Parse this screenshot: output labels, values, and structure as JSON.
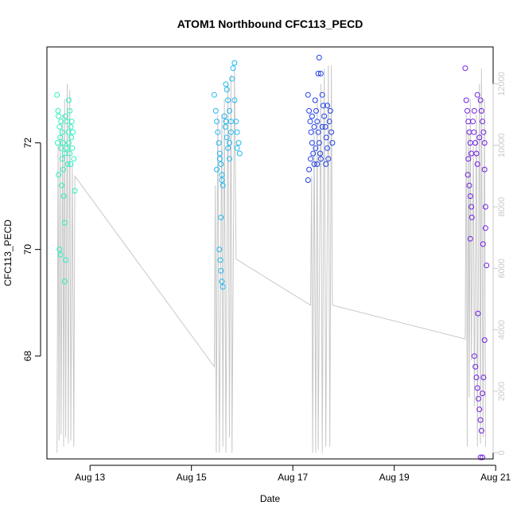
{
  "chart_data": {
    "type": "scatter",
    "title": "ATOM1 Northbound CFC113_PECD",
    "xlabel": "Date",
    "ylabel": "CFC113_PECD",
    "x_domain_days": [
      12.0,
      21.0
    ],
    "xlim_days": [
      12.15,
      20.95
    ],
    "ylim": [
      66.07,
      73.8
    ],
    "y2lim": [
      -200,
      13200
    ],
    "x_ticks": [
      {
        "label": "Aug 13",
        "day": 13
      },
      {
        "label": "Aug 15",
        "day": 15
      },
      {
        "label": "Aug 17",
        "day": 17
      },
      {
        "label": "Aug 19",
        "day": 19
      },
      {
        "label": "Aug 21",
        "day": 21
      }
    ],
    "y_ticks": [
      68,
      70,
      72
    ],
    "y2_ticks": [
      0,
      2000,
      4000,
      6000,
      8000,
      10000,
      12000
    ],
    "colors": {
      "group1": "#2af0c0",
      "group2": "#20b8f0",
      "group3": "#2040e8",
      "group4": "#7020e0",
      "altitude_line": "#c8c8c8"
    },
    "groups": [
      {
        "color_key": "group1",
        "points": [
          [
            12.35,
            72.9
          ],
          [
            12.37,
            72.6
          ],
          [
            12.38,
            72.5
          ],
          [
            12.4,
            72.3
          ],
          [
            12.41,
            72.1
          ],
          [
            12.43,
            71.9
          ],
          [
            12.45,
            71.7
          ],
          [
            12.47,
            71.5
          ],
          [
            12.38,
            71.4
          ],
          [
            12.4,
            70.0
          ],
          [
            12.42,
            69.9
          ],
          [
            12.48,
            71.0
          ],
          [
            12.5,
            70.5
          ],
          [
            12.52,
            69.8
          ],
          [
            12.5,
            69.4
          ],
          [
            12.55,
            72.4
          ],
          [
            12.57,
            72.2
          ],
          [
            12.58,
            72.0
          ],
          [
            12.6,
            71.8
          ],
          [
            12.56,
            71.6
          ],
          [
            12.58,
            72.8
          ],
          [
            12.6,
            72.6
          ],
          [
            12.62,
            72.3
          ],
          [
            12.63,
            72.1
          ],
          [
            12.65,
            71.9
          ],
          [
            12.45,
            72.2
          ],
          [
            12.47,
            72.0
          ],
          [
            12.5,
            71.8
          ],
          [
            12.52,
            72.5
          ],
          [
            12.54,
            71.9
          ],
          [
            12.62,
            71.6
          ],
          [
            12.64,
            72.4
          ],
          [
            12.66,
            72.2
          ],
          [
            12.68,
            71.7
          ],
          [
            12.7,
            71.1
          ],
          [
            12.43,
            72.4
          ],
          [
            12.36,
            72.0
          ],
          [
            12.44,
            71.2
          ]
        ]
      },
      {
        "color_key": "group2",
        "points": [
          [
            15.45,
            72.9
          ],
          [
            15.48,
            72.6
          ],
          [
            15.5,
            72.4
          ],
          [
            15.52,
            72.2
          ],
          [
            15.54,
            72.0
          ],
          [
            15.56,
            71.8
          ],
          [
            15.58,
            71.6
          ],
          [
            15.6,
            71.4
          ],
          [
            15.5,
            71.5
          ],
          [
            15.55,
            70.0
          ],
          [
            15.57,
            69.8
          ],
          [
            15.58,
            69.6
          ],
          [
            15.6,
            69.4
          ],
          [
            15.62,
            69.3
          ],
          [
            15.56,
            71.7
          ],
          [
            15.65,
            72.5
          ],
          [
            15.67,
            72.3
          ],
          [
            15.7,
            72.1
          ],
          [
            15.72,
            71.9
          ],
          [
            15.75,
            71.7
          ],
          [
            15.68,
            73.1
          ],
          [
            15.7,
            73.0
          ],
          [
            15.72,
            72.8
          ],
          [
            15.75,
            72.6
          ],
          [
            15.78,
            72.4
          ],
          [
            15.8,
            73.2
          ],
          [
            15.82,
            73.4
          ],
          [
            15.85,
            73.5
          ],
          [
            15.88,
            72.4
          ],
          [
            15.9,
            72.2
          ],
          [
            15.93,
            72.0
          ],
          [
            15.95,
            71.8
          ],
          [
            15.6,
            71.3
          ],
          [
            15.58,
            70.6
          ],
          [
            15.62,
            71.2
          ],
          [
            15.75,
            72.0
          ],
          [
            15.85,
            72.8
          ],
          [
            15.9,
            71.9
          ],
          [
            15.68,
            72.4
          ],
          [
            15.78,
            72.2
          ]
        ]
      },
      {
        "color_key": "group3",
        "points": [
          [
            17.3,
            72.9
          ],
          [
            17.32,
            72.6
          ],
          [
            17.34,
            72.4
          ],
          [
            17.36,
            72.2
          ],
          [
            17.38,
            72.0
          ],
          [
            17.4,
            71.8
          ],
          [
            17.32,
            71.5
          ],
          [
            17.3,
            71.3
          ],
          [
            17.42,
            71.6
          ],
          [
            17.44,
            72.8
          ],
          [
            17.46,
            72.6
          ],
          [
            17.48,
            72.4
          ],
          [
            17.5,
            72.2
          ],
          [
            17.52,
            72.0
          ],
          [
            17.54,
            71.8
          ],
          [
            17.5,
            73.3
          ],
          [
            17.52,
            73.6
          ],
          [
            17.55,
            73.3
          ],
          [
            17.58,
            72.9
          ],
          [
            17.6,
            72.7
          ],
          [
            17.62,
            72.5
          ],
          [
            17.64,
            72.3
          ],
          [
            17.66,
            72.1
          ],
          [
            17.68,
            71.9
          ],
          [
            17.7,
            71.7
          ],
          [
            17.72,
            72.4
          ],
          [
            17.74,
            72.6
          ],
          [
            17.76,
            72.2
          ],
          [
            17.78,
            72.0
          ],
          [
            17.45,
            71.9
          ],
          [
            17.55,
            71.7
          ],
          [
            17.65,
            71.6
          ],
          [
            17.35,
            71.7
          ],
          [
            17.42,
            72.3
          ],
          [
            17.58,
            72.3
          ],
          [
            17.48,
            71.6
          ],
          [
            17.38,
            72.5
          ],
          [
            17.68,
            72.7
          ]
        ]
      },
      {
        "color_key": "group4",
        "points": [
          [
            20.4,
            73.4
          ],
          [
            20.42,
            72.8
          ],
          [
            20.44,
            72.6
          ],
          [
            20.46,
            72.4
          ],
          [
            20.48,
            72.2
          ],
          [
            20.5,
            72.0
          ],
          [
            20.52,
            71.8
          ],
          [
            20.45,
            71.4
          ],
          [
            20.48,
            71.2
          ],
          [
            20.5,
            71.0
          ],
          [
            20.52,
            70.8
          ],
          [
            20.5,
            70.2
          ],
          [
            20.53,
            70.6
          ],
          [
            20.55,
            72.4
          ],
          [
            20.57,
            72.2
          ],
          [
            20.58,
            72.6
          ],
          [
            20.6,
            72.0
          ],
          [
            20.62,
            71.8
          ],
          [
            20.64,
            71.6
          ],
          [
            20.58,
            68.0
          ],
          [
            20.6,
            67.8
          ],
          [
            20.62,
            67.6
          ],
          [
            20.64,
            67.4
          ],
          [
            20.66,
            67.2
          ],
          [
            20.68,
            67.0
          ],
          [
            20.7,
            66.8
          ],
          [
            20.72,
            66.6
          ],
          [
            20.7,
            66.1
          ],
          [
            20.74,
            66.1
          ],
          [
            20.65,
            68.8
          ],
          [
            20.7,
            72.8
          ],
          [
            20.72,
            72.6
          ],
          [
            20.74,
            72.4
          ],
          [
            20.76,
            72.2
          ],
          [
            20.78,
            72.0
          ],
          [
            20.78,
            71.5
          ],
          [
            20.8,
            70.8
          ],
          [
            20.8,
            70.4
          ],
          [
            20.82,
            69.7
          ],
          [
            20.78,
            68.3
          ],
          [
            20.76,
            67.6
          ],
          [
            20.74,
            67.3
          ],
          [
            20.64,
            72.9
          ],
          [
            20.68,
            72.1
          ],
          [
            20.46,
            71.7
          ],
          [
            20.75,
            70.1
          ]
        ]
      }
    ],
    "altitude_series": [
      [
        12.35,
        0
      ],
      [
        12.37,
        10000
      ],
      [
        12.39,
        400
      ],
      [
        12.41,
        10500
      ],
      [
        12.43,
        600
      ],
      [
        12.46,
        11000
      ],
      [
        12.48,
        200
      ],
      [
        12.5,
        11500
      ],
      [
        12.52,
        500
      ],
      [
        12.55,
        12000
      ],
      [
        12.57,
        300
      ],
      [
        12.6,
        11800
      ],
      [
        12.62,
        400
      ],
      [
        12.65,
        9400
      ],
      [
        12.68,
        200
      ],
      [
        12.7,
        9000
      ],
      [
        15.45,
        2800
      ],
      [
        15.47,
        8700
      ],
      [
        15.49,
        0
      ],
      [
        15.52,
        11000
      ],
      [
        15.55,
        0
      ],
      [
        15.6,
        11000
      ],
      [
        15.62,
        200
      ],
      [
        15.65,
        11500
      ],
      [
        15.68,
        0
      ],
      [
        15.72,
        12000
      ],
      [
        15.75,
        500
      ],
      [
        15.78,
        12300
      ],
      [
        15.8,
        0
      ],
      [
        15.85,
        12500
      ],
      [
        15.88,
        6300
      ],
      [
        17.35,
        4800
      ],
      [
        17.37,
        9000
      ],
      [
        17.39,
        0
      ],
      [
        17.42,
        10500
      ],
      [
        17.45,
        0
      ],
      [
        17.48,
        11500
      ],
      [
        17.5,
        100
      ],
      [
        17.55,
        12000
      ],
      [
        17.58,
        0
      ],
      [
        17.62,
        12500
      ],
      [
        17.65,
        200
      ],
      [
        17.7,
        12600
      ],
      [
        17.73,
        200
      ],
      [
        17.76,
        12600
      ],
      [
        17.78,
        4800
      ],
      [
        20.4,
        3700
      ],
      [
        20.42,
        11000
      ],
      [
        20.44,
        200
      ],
      [
        20.46,
        10500
      ],
      [
        20.48,
        1800
      ],
      [
        20.5,
        11500
      ],
      [
        20.52,
        3000
      ],
      [
        20.56,
        10000
      ],
      [
        20.58,
        1500
      ],
      [
        20.62,
        11000
      ],
      [
        20.64,
        200
      ],
      [
        20.68,
        12000
      ],
      [
        20.7,
        300
      ],
      [
        20.72,
        12500
      ],
      [
        20.75,
        500
      ],
      [
        20.78,
        11500
      ],
      [
        20.8,
        200
      ]
    ]
  }
}
